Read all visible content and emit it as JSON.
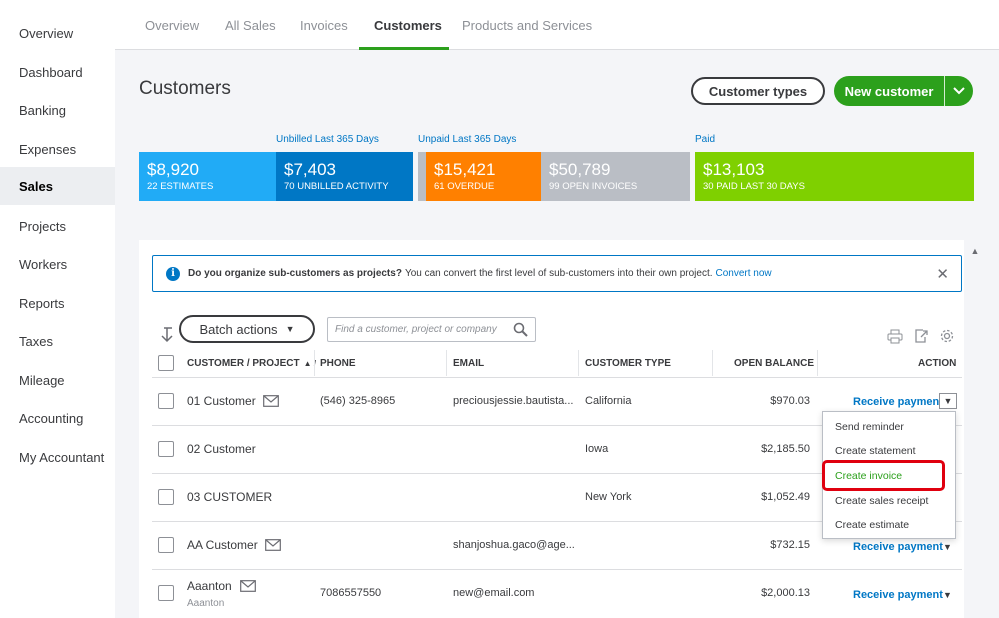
{
  "nav": {
    "items": [
      {
        "label": "Overview",
        "active": false
      },
      {
        "label": "Dashboard",
        "active": false
      },
      {
        "label": "Banking",
        "active": false
      },
      {
        "label": "Expenses",
        "active": false
      },
      {
        "label": "Sales",
        "active": true
      },
      {
        "label": "Projects",
        "active": false
      },
      {
        "label": "Workers",
        "active": false
      },
      {
        "label": "Reports",
        "active": false
      },
      {
        "label": "Taxes",
        "active": false
      },
      {
        "label": "Mileage",
        "active": false
      },
      {
        "label": "Accounting",
        "active": false
      },
      {
        "label": "My Accountant",
        "active": false
      }
    ]
  },
  "tabs": [
    {
      "label": "Overview"
    },
    {
      "label": "All Sales"
    },
    {
      "label": "Invoices"
    },
    {
      "label": "Customers",
      "active": true
    },
    {
      "label": "Products and Services"
    }
  ],
  "header": {
    "title": "Customers",
    "customer_types_label": "Customer types",
    "new_customer_label": "New customer"
  },
  "money_bar": {
    "captions": {
      "unbilled": "Unbilled Last 365 Days",
      "unpaid": "Unpaid Last 365 Days",
      "paid": "Paid"
    },
    "segments": [
      {
        "amount": "$8,920",
        "label": "22 ESTIMATES",
        "color": "#21abf6"
      },
      {
        "amount": "$7,403",
        "label": "70 UNBILLED ACTIVITY",
        "color": "#0077c5"
      },
      {
        "amount": "$15,421",
        "label": "61 OVERDUE",
        "color": "#ff8000"
      },
      {
        "amount": "$50,789",
        "label": "99 OPEN INVOICES",
        "color": "#babec5"
      },
      {
        "amount": "$13,103",
        "label": "30 PAID LAST 30 DAYS",
        "color": "#7fd000"
      }
    ]
  },
  "info_banner": {
    "question": "Do you organize sub-customers as projects?",
    "text": "You can convert the first level of sub-customers into their own project.",
    "link": "Convert now"
  },
  "toolbar": {
    "batch_actions_label": "Batch actions",
    "search_placeholder": "Find a customer, project or company"
  },
  "table": {
    "headers": {
      "customer": "CUSTOMER / PROJECT",
      "phone": "PHONE",
      "email": "EMAIL",
      "type": "CUSTOMER TYPE",
      "balance": "OPEN BALANCE",
      "action": "ACTION"
    },
    "sort_indicator": "▲ /",
    "rows": [
      {
        "name": "01 Customer",
        "sub": "",
        "phone": "(546) 325-8965",
        "email": "preciousjessie.bautista...",
        "type": "California",
        "balance": "$970.03",
        "action": "Receive payment"
      },
      {
        "name": "02 Customer",
        "sub": "",
        "phone": "",
        "email": "",
        "type": "Iowa",
        "balance": "$2,185.50",
        "action": ""
      },
      {
        "name": "03 CUSTOMER",
        "sub": "",
        "phone": "",
        "email": "",
        "type": "New York",
        "balance": "$1,052.49",
        "action": ""
      },
      {
        "name": "AA Customer",
        "sub": "",
        "phone": "",
        "email": "shanjoshua.gaco@age...",
        "type": "",
        "balance": "$732.15",
        "action": "Receive payment"
      },
      {
        "name": "Aaanton",
        "sub": "Aaanton",
        "phone": "7086557550",
        "email": "new@email.com",
        "type": "",
        "balance": "$2,000.13",
        "action": "Receive payment"
      }
    ]
  },
  "action_menu": {
    "items": [
      "Send reminder",
      "Create statement",
      "Create invoice",
      "Create sales receipt",
      "Create estimate"
    ],
    "highlighted": "Create invoice"
  }
}
